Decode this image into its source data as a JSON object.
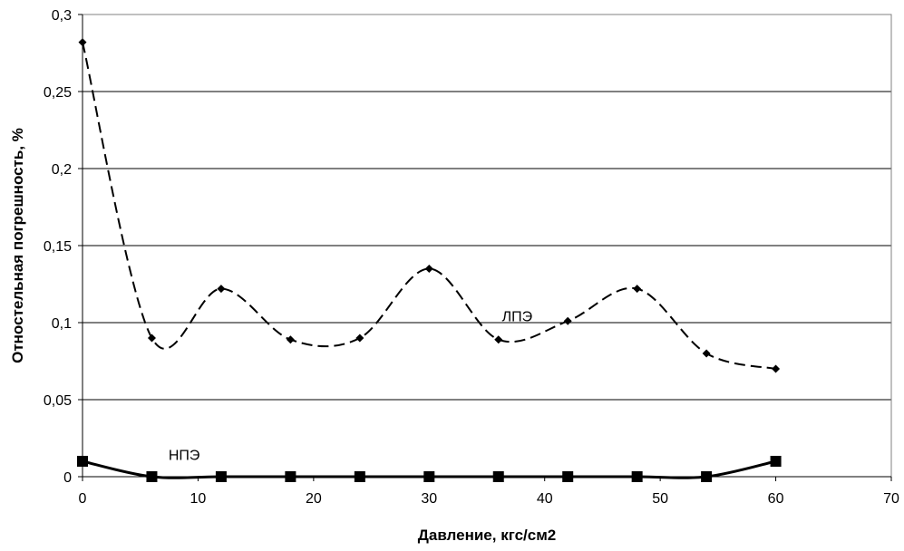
{
  "chart_data": {
    "type": "line",
    "title": "",
    "xlabel": "Давление, кгс/см2",
    "ylabel": "Отностельная погрешность, %",
    "xlim": [
      0,
      70
    ],
    "ylim": [
      0,
      0.3
    ],
    "x_ticks": [
      0,
      10,
      20,
      30,
      40,
      50,
      60,
      70
    ],
    "y_ticks": [
      0,
      0.05,
      0.1,
      0.15,
      0.2,
      0.25,
      0.3
    ],
    "x_tick_labels": [
      "0",
      "10",
      "20",
      "30",
      "40",
      "50",
      "60",
      "70"
    ],
    "y_tick_labels": [
      "0",
      "0,05",
      "0,1",
      "0,15",
      "0,2",
      "0,25",
      "0,3"
    ],
    "grid": "horizontal",
    "legend": "none",
    "series": [
      {
        "name": "ЛПЭ",
        "line_style": "dashed",
        "marker": "diamond",
        "color": "#000000",
        "x": [
          0,
          6,
          12,
          18,
          24,
          30,
          36,
          42,
          48,
          54,
          60
        ],
        "y": [
          0.282,
          0.09,
          0.122,
          0.089,
          0.09,
          0.135,
          0.089,
          0.101,
          0.122,
          0.08,
          0.07
        ]
      },
      {
        "name": "НПЭ",
        "line_style": "solid",
        "marker": "square",
        "color": "#000000",
        "x": [
          0,
          6,
          12,
          18,
          24,
          30,
          36,
          42,
          48,
          54,
          60
        ],
        "y": [
          0.01,
          0,
          0,
          0,
          0,
          0,
          0,
          0,
          0,
          0,
          0.01
        ]
      }
    ]
  }
}
